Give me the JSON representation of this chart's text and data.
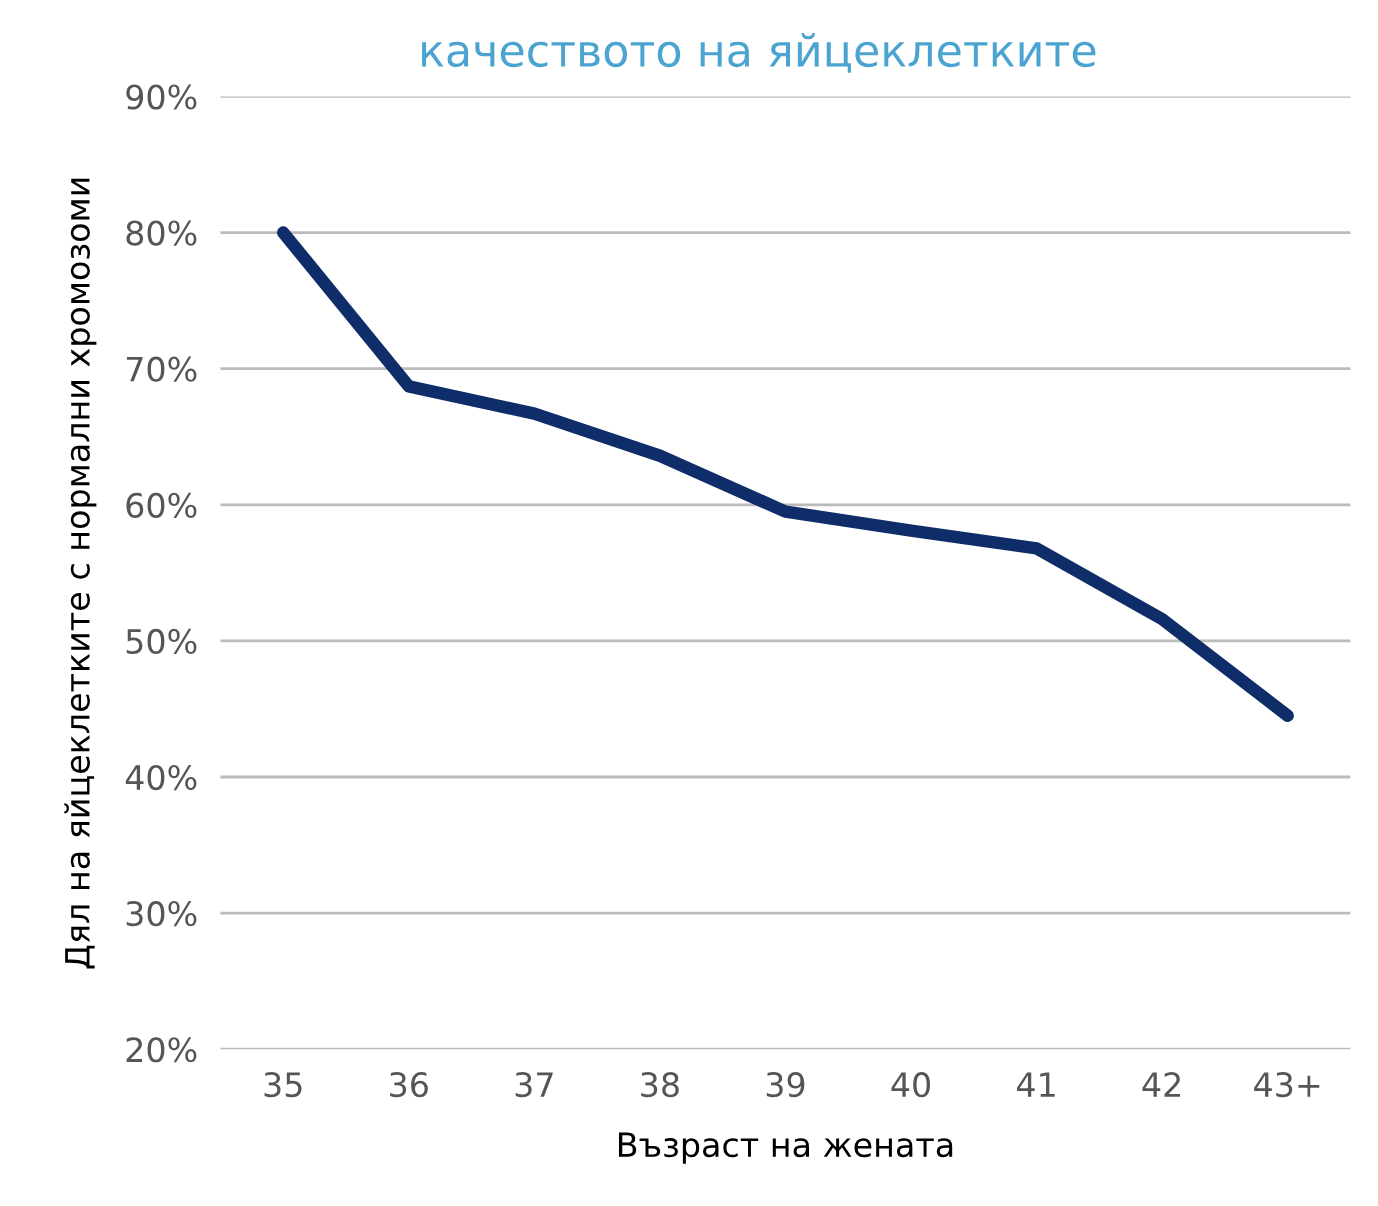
{
  "chart_data": {
    "type": "line",
    "title": "качеството на яйцеклетките",
    "xlabel": "Възраст на жената",
    "ylabel": "Дял на яйцеклетките с нормални хромозоми",
    "categories": [
      "35",
      "36",
      "37",
      "38",
      "39",
      "40",
      "41",
      "42",
      "43+"
    ],
    "series": [
      {
        "color": "#0f2d69",
        "values": [
          80,
          68.7,
          66.7,
          63.6,
          59.5,
          58.1,
          56.8,
          51.6,
          44.5
        ]
      }
    ],
    "ylim": [
      20,
      90
    ],
    "yticks": [
      {
        "value": 20,
        "label": "20%"
      },
      {
        "value": 30,
        "label": "30%"
      },
      {
        "value": 40,
        "label": "40%"
      },
      {
        "value": 50,
        "label": "50%"
      },
      {
        "value": 60,
        "label": "60%"
      },
      {
        "value": 70,
        "label": "70%"
      },
      {
        "value": 80,
        "label": "80%"
      },
      {
        "value": 90,
        "label": "90%"
      }
    ],
    "grid": "y",
    "marker": "none",
    "line_style": "solid"
  }
}
